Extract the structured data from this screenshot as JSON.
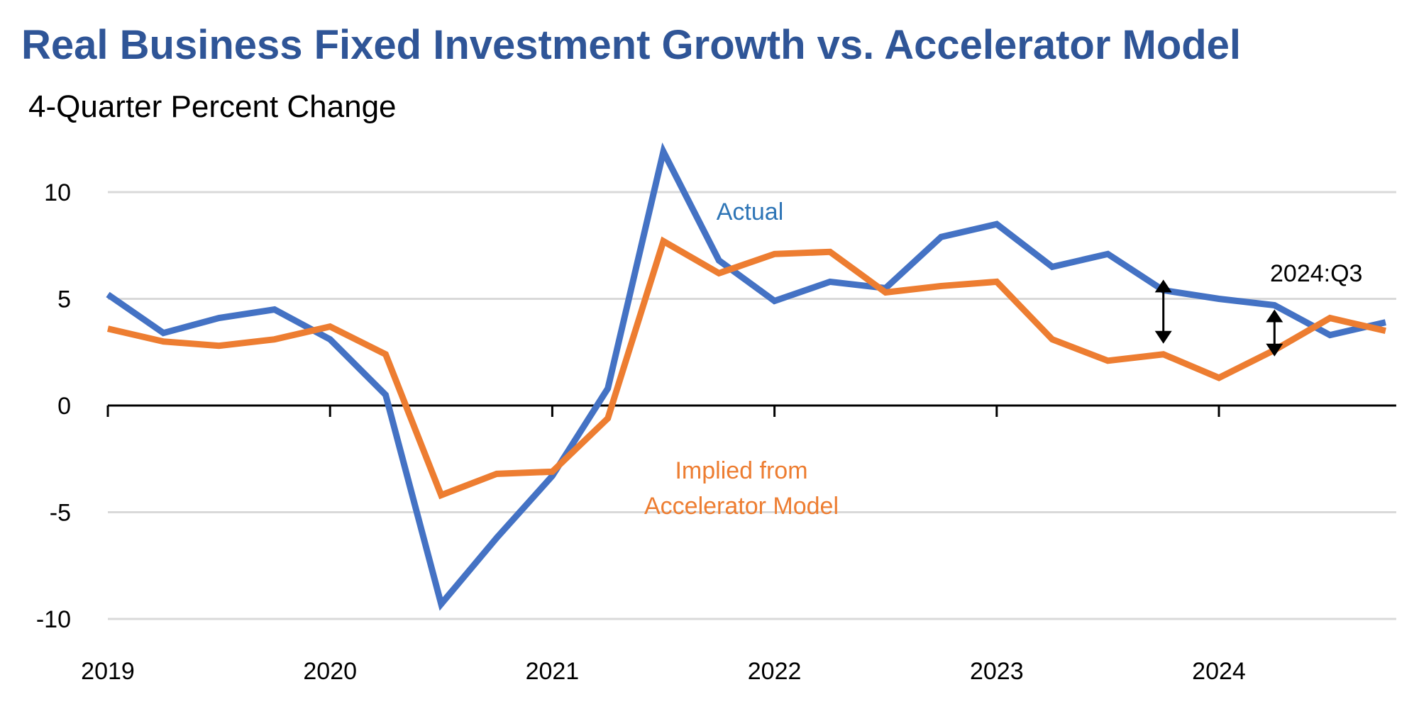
{
  "chart_data": {
    "type": "line",
    "title": "Real Business Fixed Investment Growth vs. Accelerator Model",
    "subtitle": "4-Quarter Percent Change",
    "xlabel": "",
    "ylabel": "",
    "ylim": [
      -10,
      12
    ],
    "yticks": [
      10,
      5,
      0,
      -5,
      -10
    ],
    "ytick_labels": [
      "10",
      "5",
      "0",
      "-5",
      "-10"
    ],
    "xtick_labels": [
      "2019",
      "2020",
      "2021",
      "2022",
      "2023",
      "2024"
    ],
    "grid": true,
    "x": [
      "2018:Q4",
      "2019:Q1",
      "2019:Q2",
      "2019:Q3",
      "2019:Q4",
      "2020:Q1",
      "2020:Q2",
      "2020:Q3",
      "2020:Q4",
      "2021:Q1",
      "2021:Q2",
      "2021:Q3",
      "2021:Q4",
      "2022:Q1",
      "2022:Q2",
      "2022:Q3",
      "2022:Q4",
      "2023:Q1",
      "2023:Q2",
      "2023:Q3",
      "2023:Q4",
      "2024:Q1",
      "2024:Q2",
      "2024:Q3"
    ],
    "series": [
      {
        "name": "Actual",
        "color": "#4472C4",
        "values": [
          5.2,
          3.4,
          4.1,
          4.5,
          3.1,
          0.5,
          -9.3,
          -6.2,
          -3.3,
          0.8,
          11.9,
          6.8,
          4.9,
          5.8,
          5.5,
          7.9,
          8.5,
          6.5,
          7.1,
          5.4,
          5.0,
          4.7,
          3.3,
          3.9
        ]
      },
      {
        "name": "Implied from Accelerator Model",
        "color": "#ED7D31",
        "values": [
          3.6,
          3.0,
          2.8,
          3.1,
          3.7,
          2.4,
          -4.2,
          -3.2,
          -3.1,
          -0.6,
          7.7,
          6.2,
          7.1,
          7.2,
          5.3,
          5.6,
          5.8,
          3.1,
          2.1,
          2.4,
          1.3,
          2.6,
          4.1,
          3.5
        ]
      }
    ],
    "labels": {
      "actual": "Actual",
      "implied_line1": "Implied from",
      "implied_line2": "Accelerator Model",
      "last_point": "2024:Q3"
    },
    "label_colors": {
      "actual": "#2E75B6",
      "implied": "#ED7D31"
    },
    "annotations": [
      {
        "type": "double-arrow",
        "x": "2023:Q3",
        "from": 5.9,
        "to": 2.9
      },
      {
        "type": "double-arrow",
        "x": "2024:Q1",
        "from": 4.5,
        "to": 2.3
      }
    ]
  }
}
